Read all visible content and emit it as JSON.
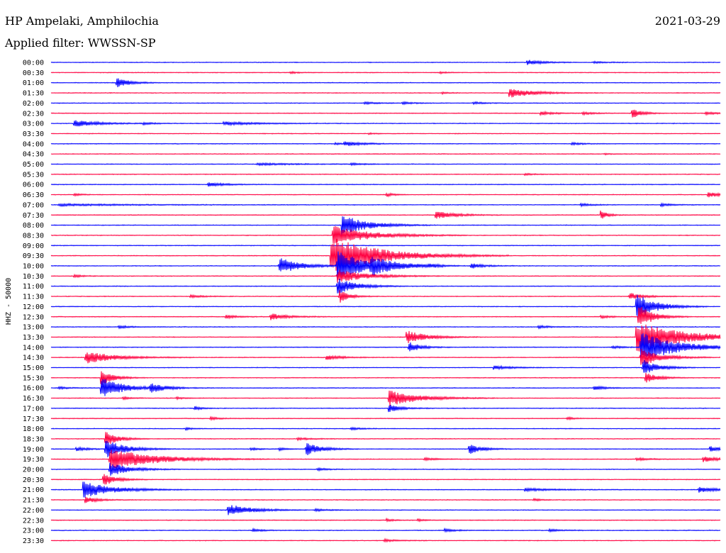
{
  "header": {
    "station": "HP Ampelaki, Amphilochia",
    "date": "2021-03-29",
    "filter": "Applied filter: WWSSN-SP"
  },
  "chart_data": {
    "type": "line",
    "chart_kind": "helicorder",
    "ylabel": "HHZ - 50000",
    "line_colors": [
      "#0000ff",
      "#ff0040"
    ],
    "time_range_minutes": [
      0,
      30
    ],
    "rows": [
      {
        "label": "00:00",
        "events": [
          {
            "t": 21.3,
            "a": 4,
            "d": 0.6
          },
          {
            "t": 24.3,
            "a": 1.5,
            "d": 0.5
          }
        ]
      },
      {
        "label": "00:30",
        "events": [
          {
            "t": 10.7,
            "a": 1.5,
            "d": 0.3
          },
          {
            "t": 17.4,
            "a": 1.5,
            "d": 0.3
          }
        ]
      },
      {
        "label": "01:00",
        "events": [
          {
            "t": 2.9,
            "a": 8,
            "d": 0.5
          }
        ]
      },
      {
        "label": "01:30",
        "events": [
          {
            "t": 20.5,
            "a": 7,
            "d": 1.0
          },
          {
            "t": 17.5,
            "a": 1.5,
            "d": 0.3
          }
        ]
      },
      {
        "label": "02:00",
        "events": [
          {
            "t": 14.0,
            "a": 1.5,
            "d": 0.6
          },
          {
            "t": 15.7,
            "a": 1.5,
            "d": 0.5
          },
          {
            "t": 18.9,
            "a": 1.5,
            "d": 0.5
          }
        ]
      },
      {
        "label": "02:30",
        "events": [
          {
            "t": 26.0,
            "a": 8,
            "d": 0.4
          },
          {
            "t": 21.9,
            "a": 2.5,
            "d": 0.6
          },
          {
            "t": 23.8,
            "a": 2,
            "d": 0.5
          },
          {
            "t": 29.3,
            "a": 2,
            "d": 0.6
          }
        ]
      },
      {
        "label": "03:00",
        "events": [
          {
            "t": 1.0,
            "a": 5,
            "d": 1.0
          },
          {
            "t": 7.7,
            "a": 2.5,
            "d": 1.4
          },
          {
            "t": 4.1,
            "a": 1.5,
            "d": 0.5
          }
        ]
      },
      {
        "label": "03:30",
        "events": [
          {
            "t": 14.2,
            "a": 1,
            "d": 0.3
          }
        ]
      },
      {
        "label": "04:00",
        "events": [
          {
            "t": 13.1,
            "a": 3.5,
            "d": 0.8
          },
          {
            "t": 12.7,
            "a": 1.5,
            "d": 0.3
          },
          {
            "t": 23.3,
            "a": 1.5,
            "d": 0.5
          }
        ]
      },
      {
        "label": "04:30",
        "events": [
          {
            "t": 24.8,
            "a": 1,
            "d": 0.3
          }
        ]
      },
      {
        "label": "05:00",
        "events": [
          {
            "t": 9.2,
            "a": 1.5,
            "d": 1.5
          },
          {
            "t": 13.4,
            "a": 1.5,
            "d": 0.5
          }
        ]
      },
      {
        "label": "05:30",
        "events": [
          {
            "t": 21.2,
            "a": 1.5,
            "d": 0.4
          }
        ]
      },
      {
        "label": "06:00",
        "events": [
          {
            "t": 7.0,
            "a": 3,
            "d": 0.7
          }
        ]
      },
      {
        "label": "06:30",
        "events": [
          {
            "t": 29.4,
            "a": 4,
            "d": 0.6
          },
          {
            "t": 1.0,
            "a": 2,
            "d": 0.3
          },
          {
            "t": 15.0,
            "a": 3,
            "d": 0.3
          }
        ]
      },
      {
        "label": "07:00",
        "events": [
          {
            "t": 0.3,
            "a": 1.5,
            "d": 3.0
          },
          {
            "t": 23.7,
            "a": 2,
            "d": 0.5
          },
          {
            "t": 27.3,
            "a": 2,
            "d": 0.5
          }
        ]
      },
      {
        "label": "07:30",
        "events": [
          {
            "t": 17.2,
            "a": 6,
            "d": 0.8
          },
          {
            "t": 24.6,
            "a": 7,
            "d": 0.3
          }
        ]
      },
      {
        "label": "08:00",
        "events": [
          {
            "t": 13.0,
            "a": 16,
            "d": 1.0
          }
        ]
      },
      {
        "label": "08:30",
        "events": [
          {
            "t": 12.6,
            "a": 14,
            "d": 1.5
          }
        ]
      },
      {
        "label": "09:00",
        "events": []
      },
      {
        "label": "09:30",
        "events": [
          {
            "t": 12.5,
            "a": 28,
            "d": 2.0
          }
        ]
      },
      {
        "label": "10:00",
        "events": [
          {
            "t": 10.2,
            "a": 12,
            "d": 0.9
          },
          {
            "t": 12.8,
            "a": 22,
            "d": 1.2
          },
          {
            "t": 14.3,
            "a": 10,
            "d": 1.0
          },
          {
            "t": 16.9,
            "a": 2,
            "d": 0.5
          },
          {
            "t": 18.8,
            "a": 4,
            "d": 0.5
          }
        ]
      },
      {
        "label": "10:30",
        "events": [
          {
            "t": 12.8,
            "a": 10,
            "d": 1.2
          },
          {
            "t": 1.0,
            "a": 2,
            "d": 0.4
          }
        ]
      },
      {
        "label": "11:00",
        "events": [
          {
            "t": 12.8,
            "a": 12,
            "d": 0.8
          }
        ]
      },
      {
        "label": "11:30",
        "events": [
          {
            "t": 25.9,
            "a": 5,
            "d": 0.6
          },
          {
            "t": 12.9,
            "a": 10,
            "d": 0.4
          },
          {
            "t": 6.2,
            "a": 2,
            "d": 0.5
          }
        ]
      },
      {
        "label": "12:00",
        "events": [
          {
            "t": 26.2,
            "a": 20,
            "d": 0.8
          }
        ]
      },
      {
        "label": "12:30",
        "events": [
          {
            "t": 9.8,
            "a": 5,
            "d": 0.7
          },
          {
            "t": 7.8,
            "a": 2.5,
            "d": 0.5
          },
          {
            "t": 24.6,
            "a": 2,
            "d": 0.5
          },
          {
            "t": 26.3,
            "a": 18,
            "d": 0.6
          }
        ]
      },
      {
        "label": "13:00",
        "events": [
          {
            "t": 3.0,
            "a": 2,
            "d": 0.5
          },
          {
            "t": 21.8,
            "a": 2,
            "d": 0.5
          }
        ]
      },
      {
        "label": "13:30",
        "events": [
          {
            "t": 15.9,
            "a": 10,
            "d": 0.8
          },
          {
            "t": 26.2,
            "a": 22,
            "d": 2.0
          }
        ]
      },
      {
        "label": "14:00",
        "events": [
          {
            "t": 16.0,
            "a": 8,
            "d": 0.5
          },
          {
            "t": 26.4,
            "a": 22,
            "d": 1.5
          },
          {
            "t": 25.1,
            "a": 2,
            "d": 0.5
          }
        ]
      },
      {
        "label": "14:30",
        "events": [
          {
            "t": 1.5,
            "a": 9,
            "d": 1.2
          },
          {
            "t": 12.3,
            "a": 4,
            "d": 0.6
          },
          {
            "t": 26.4,
            "a": 14,
            "d": 0.8
          }
        ]
      },
      {
        "label": "15:00",
        "events": [
          {
            "t": 19.8,
            "a": 3,
            "d": 0.7
          },
          {
            "t": 26.5,
            "a": 12,
            "d": 0.6
          }
        ]
      },
      {
        "label": "15:30",
        "events": [
          {
            "t": 2.2,
            "a": 12,
            "d": 0.5
          },
          {
            "t": 26.6,
            "a": 8,
            "d": 0.5
          }
        ]
      },
      {
        "label": "16:00",
        "events": [
          {
            "t": 2.2,
            "a": 16,
            "d": 0.9
          },
          {
            "t": 4.4,
            "a": 6,
            "d": 0.7
          },
          {
            "t": 24.3,
            "a": 3,
            "d": 0.5
          },
          {
            "t": 0.3,
            "a": 2,
            "d": 0.4
          }
        ]
      },
      {
        "label": "16:30",
        "events": [
          {
            "t": 15.1,
            "a": 12,
            "d": 1.2
          },
          {
            "t": 3.2,
            "a": 2,
            "d": 0.3
          },
          {
            "t": 5.6,
            "a": 2,
            "d": 0.3
          }
        ]
      },
      {
        "label": "17:00",
        "events": [
          {
            "t": 15.1,
            "a": 6,
            "d": 0.5
          },
          {
            "t": 6.4,
            "a": 3,
            "d": 0.3
          }
        ]
      },
      {
        "label": "17:30",
        "events": [
          {
            "t": 7.1,
            "a": 2,
            "d": 0.5
          },
          {
            "t": 23.1,
            "a": 2,
            "d": 0.3
          }
        ]
      },
      {
        "label": "18:00",
        "events": [
          {
            "t": 6.0,
            "a": 2,
            "d": 0.3
          },
          {
            "t": 13.4,
            "a": 2,
            "d": 0.4
          }
        ]
      },
      {
        "label": "18:30",
        "events": [
          {
            "t": 2.4,
            "a": 12,
            "d": 0.5
          },
          {
            "t": 11.0,
            "a": 2,
            "d": 0.5
          }
        ]
      },
      {
        "label": "19:00",
        "events": [
          {
            "t": 2.4,
            "a": 14,
            "d": 0.8
          },
          {
            "t": 11.4,
            "a": 10,
            "d": 0.6
          },
          {
            "t": 18.7,
            "a": 8,
            "d": 0.5
          },
          {
            "t": 1.1,
            "a": 3,
            "d": 0.5
          },
          {
            "t": 8.9,
            "a": 2,
            "d": 0.4
          },
          {
            "t": 10.2,
            "a": 2,
            "d": 0.3
          },
          {
            "t": 29.5,
            "a": 4,
            "d": 0.6
          }
        ]
      },
      {
        "label": "19:30",
        "events": [
          {
            "t": 2.6,
            "a": 16,
            "d": 1.8
          },
          {
            "t": 29.2,
            "a": 4,
            "d": 0.7
          },
          {
            "t": 26.2,
            "a": 2,
            "d": 0.6
          },
          {
            "t": 16.7,
            "a": 2,
            "d": 0.5
          }
        ]
      },
      {
        "label": "20:00",
        "events": [
          {
            "t": 2.6,
            "a": 10,
            "d": 0.8
          },
          {
            "t": 11.9,
            "a": 2,
            "d": 0.4
          }
        ]
      },
      {
        "label": "20:30",
        "events": [
          {
            "t": 2.3,
            "a": 10,
            "d": 0.5
          }
        ]
      },
      {
        "label": "21:00",
        "events": [
          {
            "t": 1.4,
            "a": 12,
            "d": 1.2
          },
          {
            "t": 21.2,
            "a": 2,
            "d": 1.2
          },
          {
            "t": 29.0,
            "a": 4,
            "d": 0.7
          }
        ]
      },
      {
        "label": "21:30",
        "events": [
          {
            "t": 1.5,
            "a": 5,
            "d": 0.5
          },
          {
            "t": 21.6,
            "a": 2,
            "d": 0.3
          }
        ]
      },
      {
        "label": "22:00",
        "events": [
          {
            "t": 7.9,
            "a": 9,
            "d": 0.9
          },
          {
            "t": 11.8,
            "a": 2,
            "d": 0.5
          }
        ]
      },
      {
        "label": "22:30",
        "events": [
          {
            "t": 15.0,
            "a": 2,
            "d": 0.3
          },
          {
            "t": 16.4,
            "a": 2,
            "d": 0.3
          }
        ]
      },
      {
        "label": "23:00",
        "events": [
          {
            "t": 9.0,
            "a": 2,
            "d": 0.5
          },
          {
            "t": 17.6,
            "a": 2,
            "d": 0.5
          },
          {
            "t": 22.3,
            "a": 2,
            "d": 0.5
          }
        ]
      },
      {
        "label": "23:30",
        "events": [
          {
            "t": 14.9,
            "a": 2,
            "d": 0.5
          }
        ]
      }
    ]
  }
}
